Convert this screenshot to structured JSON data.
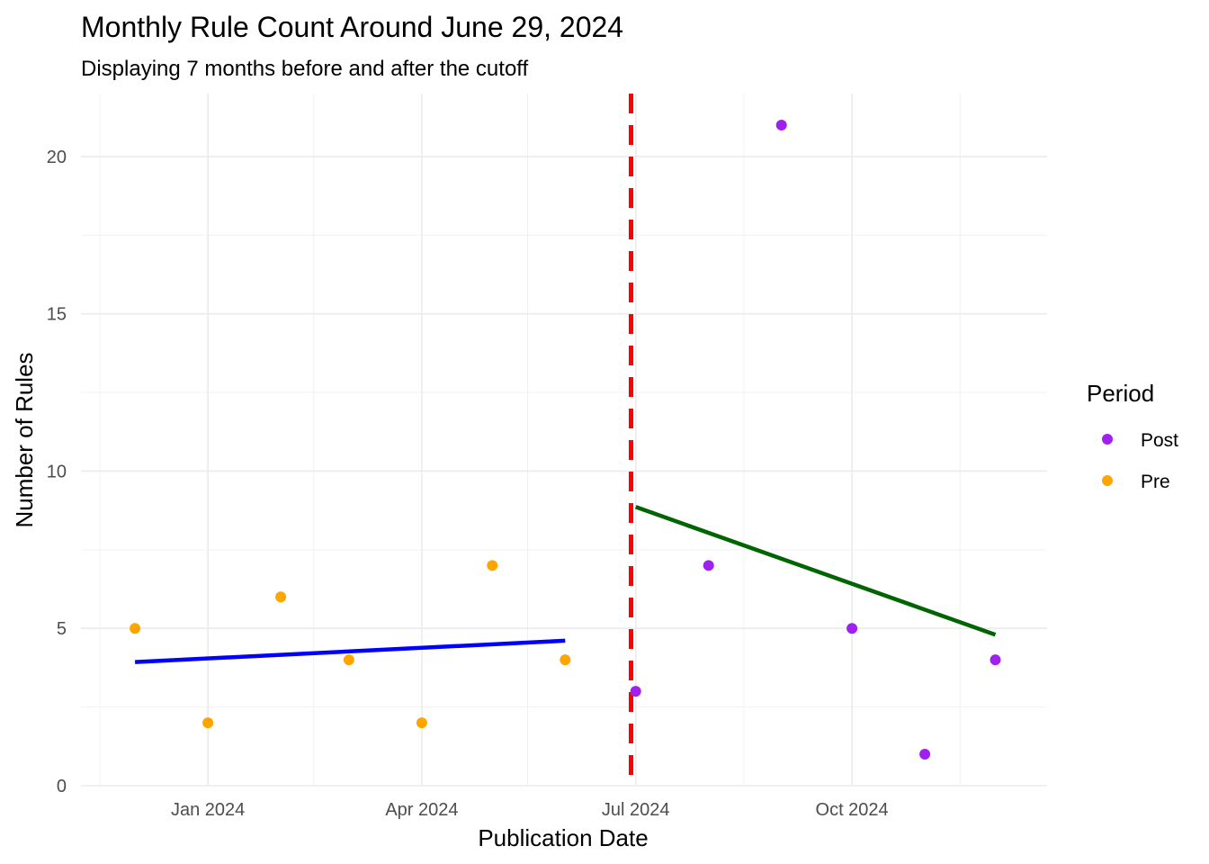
{
  "chart_data": {
    "type": "scatter",
    "title": "Monthly Rule Count Around June 29, 2024",
    "subtitle": "Displaying 7 months before and after the cutoff",
    "xlabel": "Publication Date",
    "ylabel": "Number of Rules",
    "xlim": [
      "2023-11-08",
      "2024-12-23"
    ],
    "ylim": [
      0,
      22
    ],
    "x_ticks": [
      {
        "date": "2024-01-01",
        "label": "Jan 2024"
      },
      {
        "date": "2024-04-01",
        "label": "Apr 2024"
      },
      {
        "date": "2024-07-01",
        "label": "Jul 2024"
      },
      {
        "date": "2024-10-01",
        "label": "Oct 2024"
      }
    ],
    "x_minor_ticks": [
      "2023-11-16",
      "2024-02-15",
      "2024-05-16",
      "2024-08-16",
      "2024-11-16"
    ],
    "y_ticks": [
      0,
      5,
      10,
      15,
      20
    ],
    "grid": true,
    "cutoff": {
      "date": "2024-06-29",
      "color": "#ff0000",
      "style": "dashed"
    },
    "series": [
      {
        "name": "Pre",
        "color": "#ffa500",
        "points": [
          {
            "x": "2023-12-01",
            "y": 5
          },
          {
            "x": "2024-01-01",
            "y": 2
          },
          {
            "x": "2024-02-01",
            "y": 6
          },
          {
            "x": "2024-03-01",
            "y": 4
          },
          {
            "x": "2024-04-01",
            "y": 2
          },
          {
            "x": "2024-05-01",
            "y": 7
          },
          {
            "x": "2024-06-01",
            "y": 4
          }
        ],
        "fit": {
          "color": "#0000ff",
          "start": {
            "x": "2023-12-01",
            "y": 3.93
          },
          "end": {
            "x": "2024-06-01",
            "y": 4.61
          }
        }
      },
      {
        "name": "Post",
        "color": "#a020f0",
        "points": [
          {
            "x": "2024-07-01",
            "y": 3
          },
          {
            "x": "2024-08-01",
            "y": 7
          },
          {
            "x": "2024-09-01",
            "y": 21
          },
          {
            "x": "2024-10-01",
            "y": 5
          },
          {
            "x": "2024-11-01",
            "y": 1
          },
          {
            "x": "2024-12-01",
            "y": 4
          }
        ],
        "fit": {
          "color": "#006400",
          "start": {
            "x": "2024-07-01",
            "y": 8.86
          },
          "end": {
            "x": "2024-12-01",
            "y": 4.8
          }
        }
      }
    ],
    "legend": {
      "title": "Period",
      "position": "right",
      "items": [
        {
          "label": "Post",
          "color": "#a020f0"
        },
        {
          "label": "Pre",
          "color": "#ffa500"
        }
      ]
    }
  }
}
